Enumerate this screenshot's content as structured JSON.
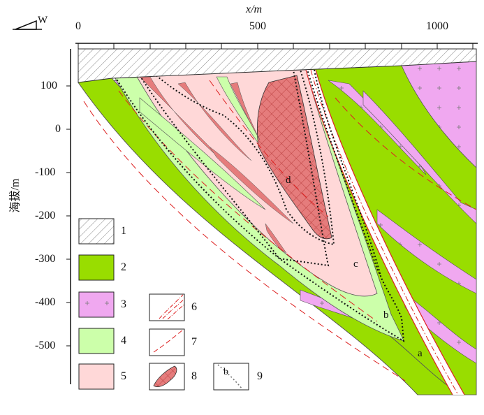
{
  "orientation": {
    "label": "W"
  },
  "x_axis": {
    "label": "x/m",
    "ticks": [
      "0",
      "500",
      "1000"
    ]
  },
  "y_axis": {
    "label": "海拔/m",
    "ticks": [
      "100",
      "0",
      "-100",
      "-200",
      "-300",
      "-400",
      "-500"
    ]
  },
  "legend": {
    "items": [
      {
        "key": "1",
        "fill": "#ffffff",
        "pattern": "hatch"
      },
      {
        "key": "2",
        "fill": "#99dd00"
      },
      {
        "key": "3",
        "fill": "#f0a8f0",
        "pattern": "plus"
      },
      {
        "key": "4",
        "fill": "#ccffaa"
      },
      {
        "key": "5",
        "fill": "#ffd8d8"
      },
      {
        "key": "6",
        "pattern": "dash-dot-red"
      },
      {
        "key": "7",
        "pattern": "dash-red"
      },
      {
        "key": "8",
        "fill": "#e57c7c",
        "pattern": "crosshatch"
      },
      {
        "key": "9",
        "pattern": "dotted-black",
        "sample_letter": "b"
      }
    ]
  },
  "zones": {
    "a": "a",
    "b": "b",
    "c": "c",
    "d": "d"
  },
  "colors": {
    "overburden": "#ffffff",
    "green": "#99dd00",
    "pink_granite": "#f0a8f0",
    "light_green": "#ccffaa",
    "light_pink": "#ffd8d8",
    "ore": "#e57c7c",
    "fault": "#dd2222"
  }
}
